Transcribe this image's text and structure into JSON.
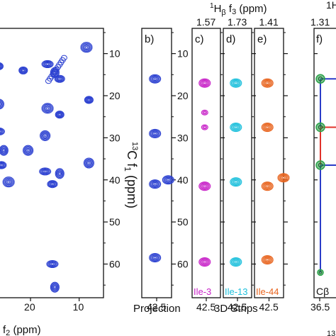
{
  "colors": {
    "contour": "#2a3fd0",
    "magenta": "#c823c8",
    "cyan": "#1ec0dc",
    "orange": "#e8641e",
    "green": "#2ca24a",
    "red": "#e0322a",
    "blue": "#2a3cc8",
    "axis": "#111111"
  },
  "header": {
    "top_axis_label_sup": "1",
    "top_axis_label_main": "H",
    "top_axis_label_sub": "β",
    "top_axis_label_rest": " f",
    "top_axis_label_sub2": "3",
    "top_axis_label_unit": " (ppm)",
    "edge_label": "1H"
  },
  "panel_a": {
    "yaxis_label": "13C f1 (ppm)",
    "yaxis_label_sup": "13",
    "yaxis_label_main": "C f",
    "yaxis_label_sub": "1",
    "yaxis_label_unit": " (ppm)",
    "xaxis_label": "f2 (ppm)",
    "xaxis_label_main": "f",
    "xaxis_label_sub": "2",
    "xaxis_label_unit": " (ppm)",
    "ytick_labels": [
      "10",
      "20",
      "30",
      "40",
      "50",
      "60"
    ],
    "xtick_labels": [
      "20",
      "10"
    ]
  },
  "panel_b": {
    "label": "b)",
    "xtick": "42.5",
    "caption": "Projection"
  },
  "panel_c": {
    "label": "c)",
    "top_value": "1.57",
    "residue": "Ile-3",
    "xtick": "42.5"
  },
  "panel_d": {
    "label": "d)",
    "top_value": "1.73",
    "residue": "Ile-13",
    "xtick": "42.5"
  },
  "panel_e": {
    "label": "e)",
    "top_value": "1.41",
    "residue": "Ile-44",
    "xtick": "42.5"
  },
  "strips_caption": "3D Strips",
  "panel_f": {
    "label": "f)",
    "top_value": "1.31",
    "atom": "Cβ",
    "xtick": "36.5",
    "edge_tick": "13"
  },
  "strip_ytick_labels": [
    "10",
    "20",
    "30",
    "40",
    "50",
    "60"
  ],
  "chart_data": [
    {
      "type": "scatter",
      "panel": "a",
      "xlabel": "f2 (ppm)",
      "ylabel": "13C f1 (ppm)",
      "x_range": [
        27,
        5
      ],
      "ylim": [
        4,
        68
      ],
      "points": [
        {
          "x": 26.5,
          "y": 13.0
        },
        {
          "x": 26.5,
          "y": 22.0
        },
        {
          "x": 26.5,
          "y": 28.5
        },
        {
          "x": 25.5,
          "y": 33.0
        },
        {
          "x": 26.0,
          "y": 36.5
        },
        {
          "x": 24.5,
          "y": 40.5
        },
        {
          "x": 21.5,
          "y": 14.0
        },
        {
          "x": 20.5,
          "y": 33.0
        },
        {
          "x": 16.5,
          "y": 12.5
        },
        {
          "x": 15.0,
          "y": 14.5
        },
        {
          "x": 14.0,
          "y": 16.0
        },
        {
          "x": 16.5,
          "y": 23.0
        },
        {
          "x": 14.0,
          "y": 24.5
        },
        {
          "x": 17.0,
          "y": 29.5
        },
        {
          "x": 17.0,
          "y": 38.0
        },
        {
          "x": 14.0,
          "y": 38.5
        },
        {
          "x": 15.5,
          "y": 41.0
        },
        {
          "x": 8.5,
          "y": 8.5
        },
        {
          "x": 8.0,
          "y": 21.0
        },
        {
          "x": 8.0,
          "y": 36.0
        },
        {
          "x": 15.5,
          "y": 60.0
        },
        {
          "x": 15.0,
          "y": 65.5
        }
      ]
    },
    {
      "type": "scatter",
      "panel": "b",
      "caption": "Projection",
      "ylim": [
        4,
        68
      ],
      "points": [
        {
          "x": 42.5,
          "y": 16.0
        },
        {
          "x": 42.5,
          "y": 29.0
        },
        {
          "x": 42.5,
          "y": 41.0
        },
        {
          "x": 42.5,
          "y": 58.5
        },
        {
          "x": 40.5,
          "y": 40.0
        }
      ]
    },
    {
      "type": "scatter",
      "panel": "c",
      "residue": "Ile-3",
      "ylim": [
        4,
        68
      ],
      "points": [
        {
          "x": 42.5,
          "y": 17.0
        },
        {
          "x": 42.5,
          "y": 24.0
        },
        {
          "x": 42.5,
          "y": 27.5
        },
        {
          "x": 42.5,
          "y": 41.5
        },
        {
          "x": 42.5,
          "y": 59.5
        }
      ]
    },
    {
      "type": "scatter",
      "panel": "d",
      "residue": "Ile-13",
      "ylim": [
        4,
        68
      ],
      "points": [
        {
          "x": 42.5,
          "y": 17.0
        },
        {
          "x": 42.5,
          "y": 27.5
        },
        {
          "x": 42.5,
          "y": 40.5
        },
        {
          "x": 42.5,
          "y": 59.5
        }
      ]
    },
    {
      "type": "scatter",
      "panel": "e",
      "residue": "Ile-44",
      "ylim": [
        4,
        68
      ],
      "points": [
        {
          "x": 42.5,
          "y": 17.0
        },
        {
          "x": 42.5,
          "y": 27.5
        },
        {
          "x": 42.5,
          "y": 41.5
        },
        {
          "x": 42.5,
          "y": 59.0
        },
        {
          "x": 40.0,
          "y": 39.5
        }
      ]
    },
    {
      "type": "line",
      "panel": "f",
      "ylim": [
        4,
        68
      ],
      "nodes": [
        {
          "x": 36.5,
          "y": 16.0
        },
        {
          "x": 36.5,
          "y": 27.5
        },
        {
          "x": 36.5,
          "y": 36.5
        },
        {
          "x": 36.5,
          "y": 62.0
        }
      ]
    }
  ]
}
